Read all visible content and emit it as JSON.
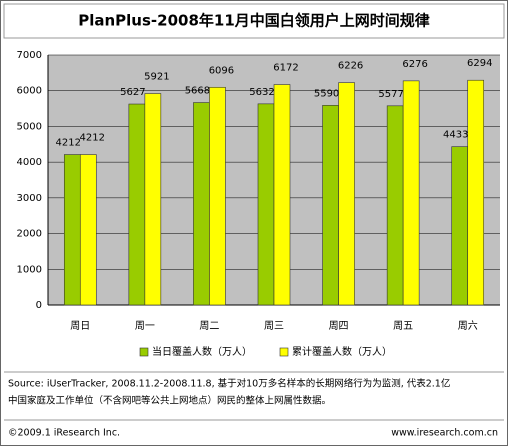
{
  "chart_data": {
    "type": "bar",
    "title": "PlanPlus-2008年11月中国白领用户上网时间规律",
    "categories": [
      "周日",
      "周一",
      "周二",
      "周三",
      "周四",
      "周五",
      "周六"
    ],
    "series": [
      {
        "name": "当日覆盖人数（万人）",
        "color": "#99cc00",
        "values": [
          4212,
          5627,
          5668,
          5632,
          5590,
          5577,
          4433
        ]
      },
      {
        "name": "累计覆盖人数（万人）",
        "color": "#ffff00",
        "values": [
          4212,
          5921,
          6096,
          6172,
          6226,
          6276,
          6294
        ]
      }
    ],
    "ylim": [
      0,
      7000
    ],
    "yticks": [
      0,
      1000,
      2000,
      3000,
      4000,
      5000,
      6000,
      7000
    ],
    "grid": true
  },
  "source": [
    "Source: iUserTracker, 2008.11.2-2008.11.8, 基于对10万多名样本的长期网络行为为监测, 代表2.1亿",
    "中国家庭及工作单位（不含网吧等公共上网地点）网民的整体上网属性数据。"
  ],
  "footer": {
    "left": "©2009.1 iResearch Inc.",
    "right": "www.iresearch.com.cn"
  }
}
